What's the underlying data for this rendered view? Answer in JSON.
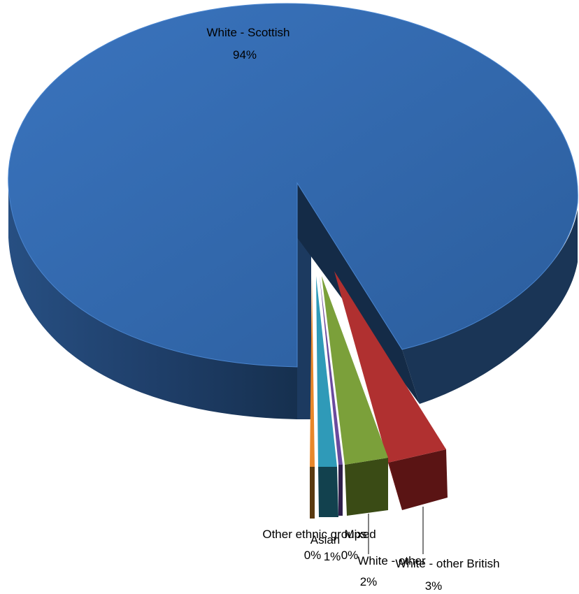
{
  "chart_data": {
    "type": "pie",
    "style": "3d-exploded",
    "title": "",
    "slices": [
      {
        "label": "White - Scottish",
        "value": 94,
        "display": "94%",
        "color": "#2E5F9E"
      },
      {
        "label": "White - other British",
        "value": 3,
        "display": "3%",
        "color": "#A52A2A"
      },
      {
        "label": "White - other",
        "value": 2,
        "display": "2%",
        "color": "#6B8E23"
      },
      {
        "label": "Mixed",
        "value": 0,
        "display": "0%",
        "color": "#5B3C88"
      },
      {
        "label": "Asian",
        "value": 1,
        "display": "1%",
        "color": "#2B8CA8"
      },
      {
        "label": "Other ethnic groups",
        "value": 0,
        "display": "0%",
        "color": "#E07B22"
      }
    ]
  }
}
